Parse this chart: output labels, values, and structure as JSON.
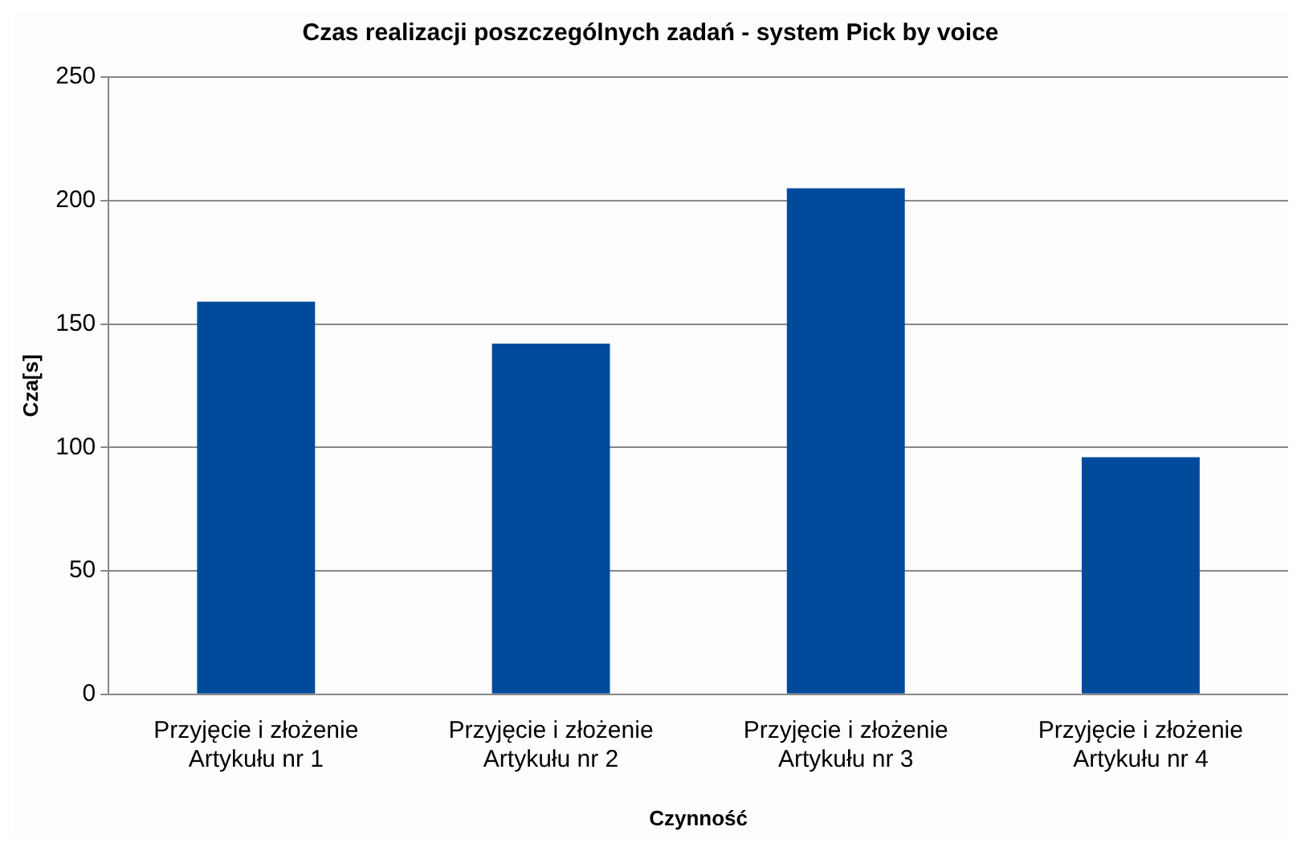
{
  "chart_data": {
    "type": "bar",
    "title": "Czas realizacji poszczególnych zadań - system Pick by voice",
    "xlabel": "Czynność",
    "ylabel": "Cza[s]",
    "categories": [
      "Przyjęcie i złożenie\nArtykułu nr 1",
      "Przyjęcie i złożenie\nArtykułu nr 2",
      "Przyjęcie i złożenie\nArtykułu nr 3",
      "Przyjęcie i złożenie\nArtykułu nr 4"
    ],
    "values": [
      159,
      142,
      205,
      96
    ],
    "color": "#004a9c",
    "ylim": [
      0,
      250
    ],
    "yticks": [
      0,
      50,
      100,
      150,
      200,
      250
    ],
    "grid": "y",
    "legend": false
  }
}
